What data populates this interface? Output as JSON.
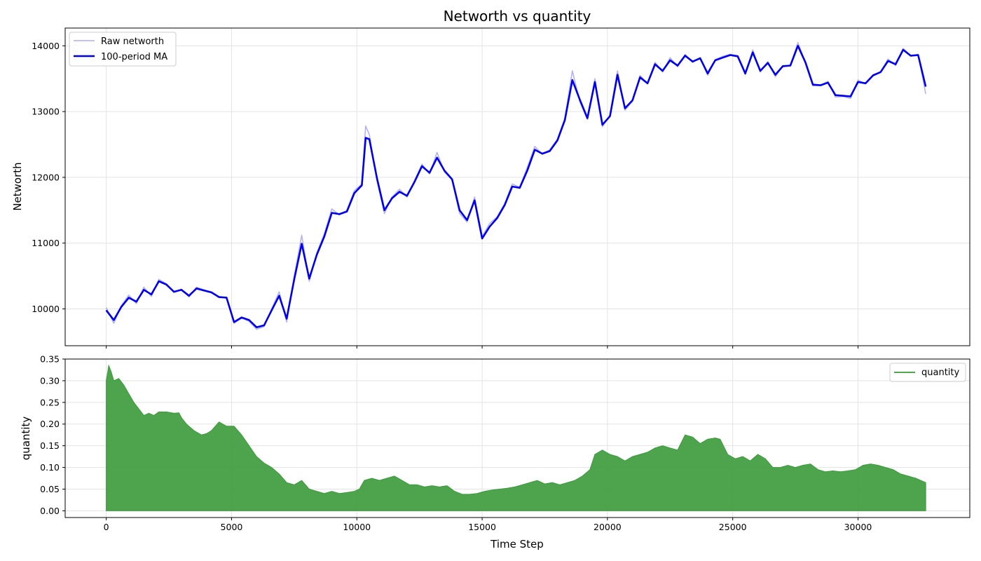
{
  "chart_data": [
    {
      "type": "line",
      "title": "Networth vs quantity",
      "xlabel": "",
      "ylabel": "Networth",
      "xlim": [
        -1640,
        34460
      ],
      "ylim": [
        9440,
        14270
      ],
      "xticks": [
        0,
        5000,
        10000,
        15000,
        20000,
        25000,
        30000
      ],
      "yticks": [
        10000,
        11000,
        12000,
        13000,
        14000
      ],
      "grid": true,
      "legend_position": "upper left",
      "series": [
        {
          "name": "Raw networth",
          "color": "#8a8af0",
          "x": [
            0,
            300,
            600,
            900,
            1200,
            1500,
            1800,
            2100,
            2400,
            2700,
            3000,
            3300,
            3600,
            3900,
            4200,
            4500,
            4800,
            5100,
            5400,
            5700,
            6000,
            6300,
            6600,
            6900,
            7200,
            7500,
            7800,
            8100,
            8400,
            8700,
            9000,
            9300,
            9600,
            9900,
            10200,
            10350,
            10500,
            10800,
            11100,
            11400,
            11700,
            12000,
            12300,
            12600,
            12900,
            13200,
            13500,
            13800,
            14100,
            14400,
            14700,
            15000,
            15300,
            15600,
            15900,
            16200,
            16500,
            16800,
            17100,
            17400,
            17700,
            18000,
            18300,
            18600,
            18900,
            19200,
            19500,
            19800,
            20100,
            20400,
            20700,
            21000,
            21300,
            21600,
            21900,
            22200,
            22500,
            22800,
            23100,
            23400,
            23700,
            24000,
            24300,
            24600,
            24900,
            25200,
            25500,
            25800,
            26100,
            26400,
            26700,
            27000,
            27300,
            27600,
            27900,
            28200,
            28500,
            28800,
            29100,
            29400,
            29700,
            30000,
            30300,
            30600,
            30900,
            31200,
            31500,
            31800,
            32100,
            32400,
            32700
          ],
          "y": [
            10020,
            9780,
            10050,
            10210,
            10080,
            10330,
            10190,
            10450,
            10380,
            10250,
            10300,
            10180,
            10330,
            10290,
            10260,
            10170,
            10180,
            9780,
            9860,
            9810,
            9690,
            9730,
            10000,
            10260,
            9800,
            10500,
            11120,
            10420,
            10850,
            11140,
            11520,
            11430,
            11500,
            11800,
            11900,
            12780,
            12650,
            11950,
            11450,
            11700,
            11820,
            11700,
            11950,
            12200,
            12050,
            12380,
            12080,
            11960,
            11450,
            11320,
            11700,
            11100,
            11300,
            11400,
            11600,
            11900,
            11850,
            12150,
            12470,
            12350,
            12420,
            12580,
            12900,
            13620,
            13150,
            12880,
            13500,
            12770,
            12950,
            13620,
            13020,
            13160,
            13550,
            13420,
            13750,
            13600,
            13820,
            13680,
            13870,
            13750,
            13820,
            13550,
            13790,
            13840,
            13870,
            13850,
            13560,
            13940,
            13600,
            13760,
            13530,
            13700,
            13700,
            14050,
            13740,
            13390,
            13400,
            13460,
            13220,
            13230,
            13200,
            13480,
            13420,
            13560,
            13600,
            13800,
            13700,
            13960,
            13850,
            13870,
            13270
          ]
        },
        {
          "name": "100-period MA",
          "color": "#0000ee",
          "x": [
            0,
            300,
            600,
            900,
            1200,
            1500,
            1800,
            2100,
            2400,
            2700,
            3000,
            3300,
            3600,
            3900,
            4200,
            4500,
            4800,
            5100,
            5400,
            5700,
            6000,
            6300,
            6600,
            6900,
            7200,
            7500,
            7800,
            8100,
            8400,
            8700,
            9000,
            9300,
            9600,
            9900,
            10200,
            10350,
            10500,
            10800,
            11100,
            11400,
            11700,
            12000,
            12300,
            12600,
            12900,
            13200,
            13500,
            13800,
            14100,
            14400,
            14700,
            15000,
            15300,
            15600,
            15900,
            16200,
            16500,
            16800,
            17100,
            17400,
            17700,
            18000,
            18300,
            18600,
            18900,
            19200,
            19500,
            19800,
            20100,
            20400,
            20700,
            21000,
            21300,
            21600,
            21900,
            22200,
            22500,
            22800,
            23100,
            23400,
            23700,
            24000,
            24300,
            24600,
            24900,
            25200,
            25500,
            25800,
            26100,
            26400,
            26700,
            27000,
            27300,
            27600,
            27900,
            28200,
            28500,
            28800,
            29100,
            29400,
            29700,
            30000,
            30300,
            30600,
            30900,
            31200,
            31500,
            31800,
            32100,
            32400,
            32700
          ],
          "y": [
            9980,
            9830,
            10030,
            10170,
            10110,
            10290,
            10220,
            10420,
            10370,
            10260,
            10290,
            10200,
            10310,
            10280,
            10250,
            10180,
            10170,
            9800,
            9870,
            9830,
            9720,
            9750,
            9980,
            10200,
            9850,
            10450,
            10990,
            10460,
            10820,
            11100,
            11460,
            11440,
            11480,
            11760,
            11880,
            12600,
            12580,
            11990,
            11500,
            11680,
            11780,
            11720,
            11930,
            12170,
            12070,
            12300,
            12100,
            11970,
            11500,
            11350,
            11650,
            11070,
            11250,
            11380,
            11580,
            11860,
            11840,
            12100,
            12420,
            12360,
            12400,
            12560,
            12870,
            13480,
            13180,
            12900,
            13450,
            12800,
            12930,
            13560,
            13050,
            13170,
            13520,
            13430,
            13720,
            13620,
            13780,
            13700,
            13850,
            13760,
            13810,
            13580,
            13780,
            13820,
            13860,
            13840,
            13580,
            13900,
            13620,
            13740,
            13560,
            13690,
            13700,
            14000,
            13750,
            13410,
            13400,
            13440,
            13250,
            13240,
            13230,
            13450,
            13430,
            13550,
            13600,
            13770,
            13720,
            13940,
            13850,
            13860,
            13380
          ]
        }
      ]
    },
    {
      "type": "area",
      "title": "",
      "xlabel": "Time Step",
      "ylabel": "quantity",
      "xlim": [
        -1640,
        34460
      ],
      "ylim": [
        -0.0155,
        0.35
      ],
      "xticks": [
        0,
        5000,
        10000,
        15000,
        20000,
        25000,
        30000
      ],
      "yticks": [
        0.0,
        0.05,
        0.1,
        0.15,
        0.2,
        0.25,
        0.3,
        0.35
      ],
      "xtick_labels": [
        "0",
        "5000",
        "10000",
        "15000",
        "20000",
        "25000",
        "30000"
      ],
      "ytick_labels": [
        "0.00",
        "0.05",
        "0.10",
        "0.15",
        "0.20",
        "0.25",
        "0.30",
        "0.35"
      ],
      "grid": true,
      "legend_position": "upper right",
      "series": [
        {
          "name": "quantity",
          "color": "#3a9a3a",
          "x": [
            0,
            100,
            200,
            300,
            500,
            700,
            900,
            1100,
            1300,
            1500,
            1700,
            1900,
            2100,
            2400,
            2700,
            2900,
            3000,
            3200,
            3500,
            3800,
            4000,
            4200,
            4500,
            4800,
            5100,
            5400,
            5700,
            6000,
            6300,
            6600,
            6900,
            7200,
            7500,
            7800,
            8100,
            8400,
            8700,
            9000,
            9300,
            9600,
            9900,
            10100,
            10300,
            10600,
            10900,
            11200,
            11500,
            11800,
            12100,
            12400,
            12700,
            13000,
            13300,
            13600,
            13900,
            14200,
            14500,
            14800,
            15100,
            15400,
            15700,
            16000,
            16300,
            16600,
            16900,
            17200,
            17500,
            17800,
            18100,
            18400,
            18700,
            19000,
            19300,
            19500,
            19800,
            20100,
            20400,
            20700,
            21000,
            21300,
            21600,
            21900,
            22200,
            22500,
            22800,
            23100,
            23400,
            23700,
            24000,
            24300,
            24500,
            24800,
            25100,
            25400,
            25700,
            26000,
            26300,
            26600,
            26900,
            27200,
            27500,
            27800,
            28100,
            28400,
            28700,
            29000,
            29300,
            29600,
            29900,
            30200,
            30500,
            30800,
            31100,
            31400,
            31700,
            32000,
            32300,
            32700
          ],
          "y": [
            0.3,
            0.335,
            0.32,
            0.3,
            0.305,
            0.29,
            0.27,
            0.25,
            0.235,
            0.22,
            0.225,
            0.22,
            0.228,
            0.228,
            0.225,
            0.226,
            0.215,
            0.2,
            0.185,
            0.175,
            0.178,
            0.185,
            0.205,
            0.195,
            0.195,
            0.175,
            0.15,
            0.125,
            0.11,
            0.1,
            0.085,
            0.065,
            0.06,
            0.07,
            0.05,
            0.045,
            0.04,
            0.045,
            0.04,
            0.042,
            0.045,
            0.05,
            0.07,
            0.075,
            0.07,
            0.075,
            0.08,
            0.07,
            0.06,
            0.06,
            0.055,
            0.058,
            0.055,
            0.058,
            0.045,
            0.038,
            0.038,
            0.04,
            0.045,
            0.048,
            0.05,
            0.052,
            0.055,
            0.06,
            0.065,
            0.07,
            0.062,
            0.065,
            0.06,
            0.065,
            0.07,
            0.08,
            0.095,
            0.13,
            0.14,
            0.13,
            0.125,
            0.115,
            0.125,
            0.13,
            0.135,
            0.145,
            0.15,
            0.145,
            0.14,
            0.175,
            0.17,
            0.155,
            0.165,
            0.168,
            0.165,
            0.13,
            0.12,
            0.125,
            0.115,
            0.13,
            0.12,
            0.1,
            0.1,
            0.105,
            0.1,
            0.105,
            0.108,
            0.095,
            0.09,
            0.092,
            0.09,
            0.092,
            0.095,
            0.105,
            0.108,
            0.105,
            0.1,
            0.095,
            0.085,
            0.08,
            0.075,
            0.065
          ]
        }
      ]
    }
  ]
}
